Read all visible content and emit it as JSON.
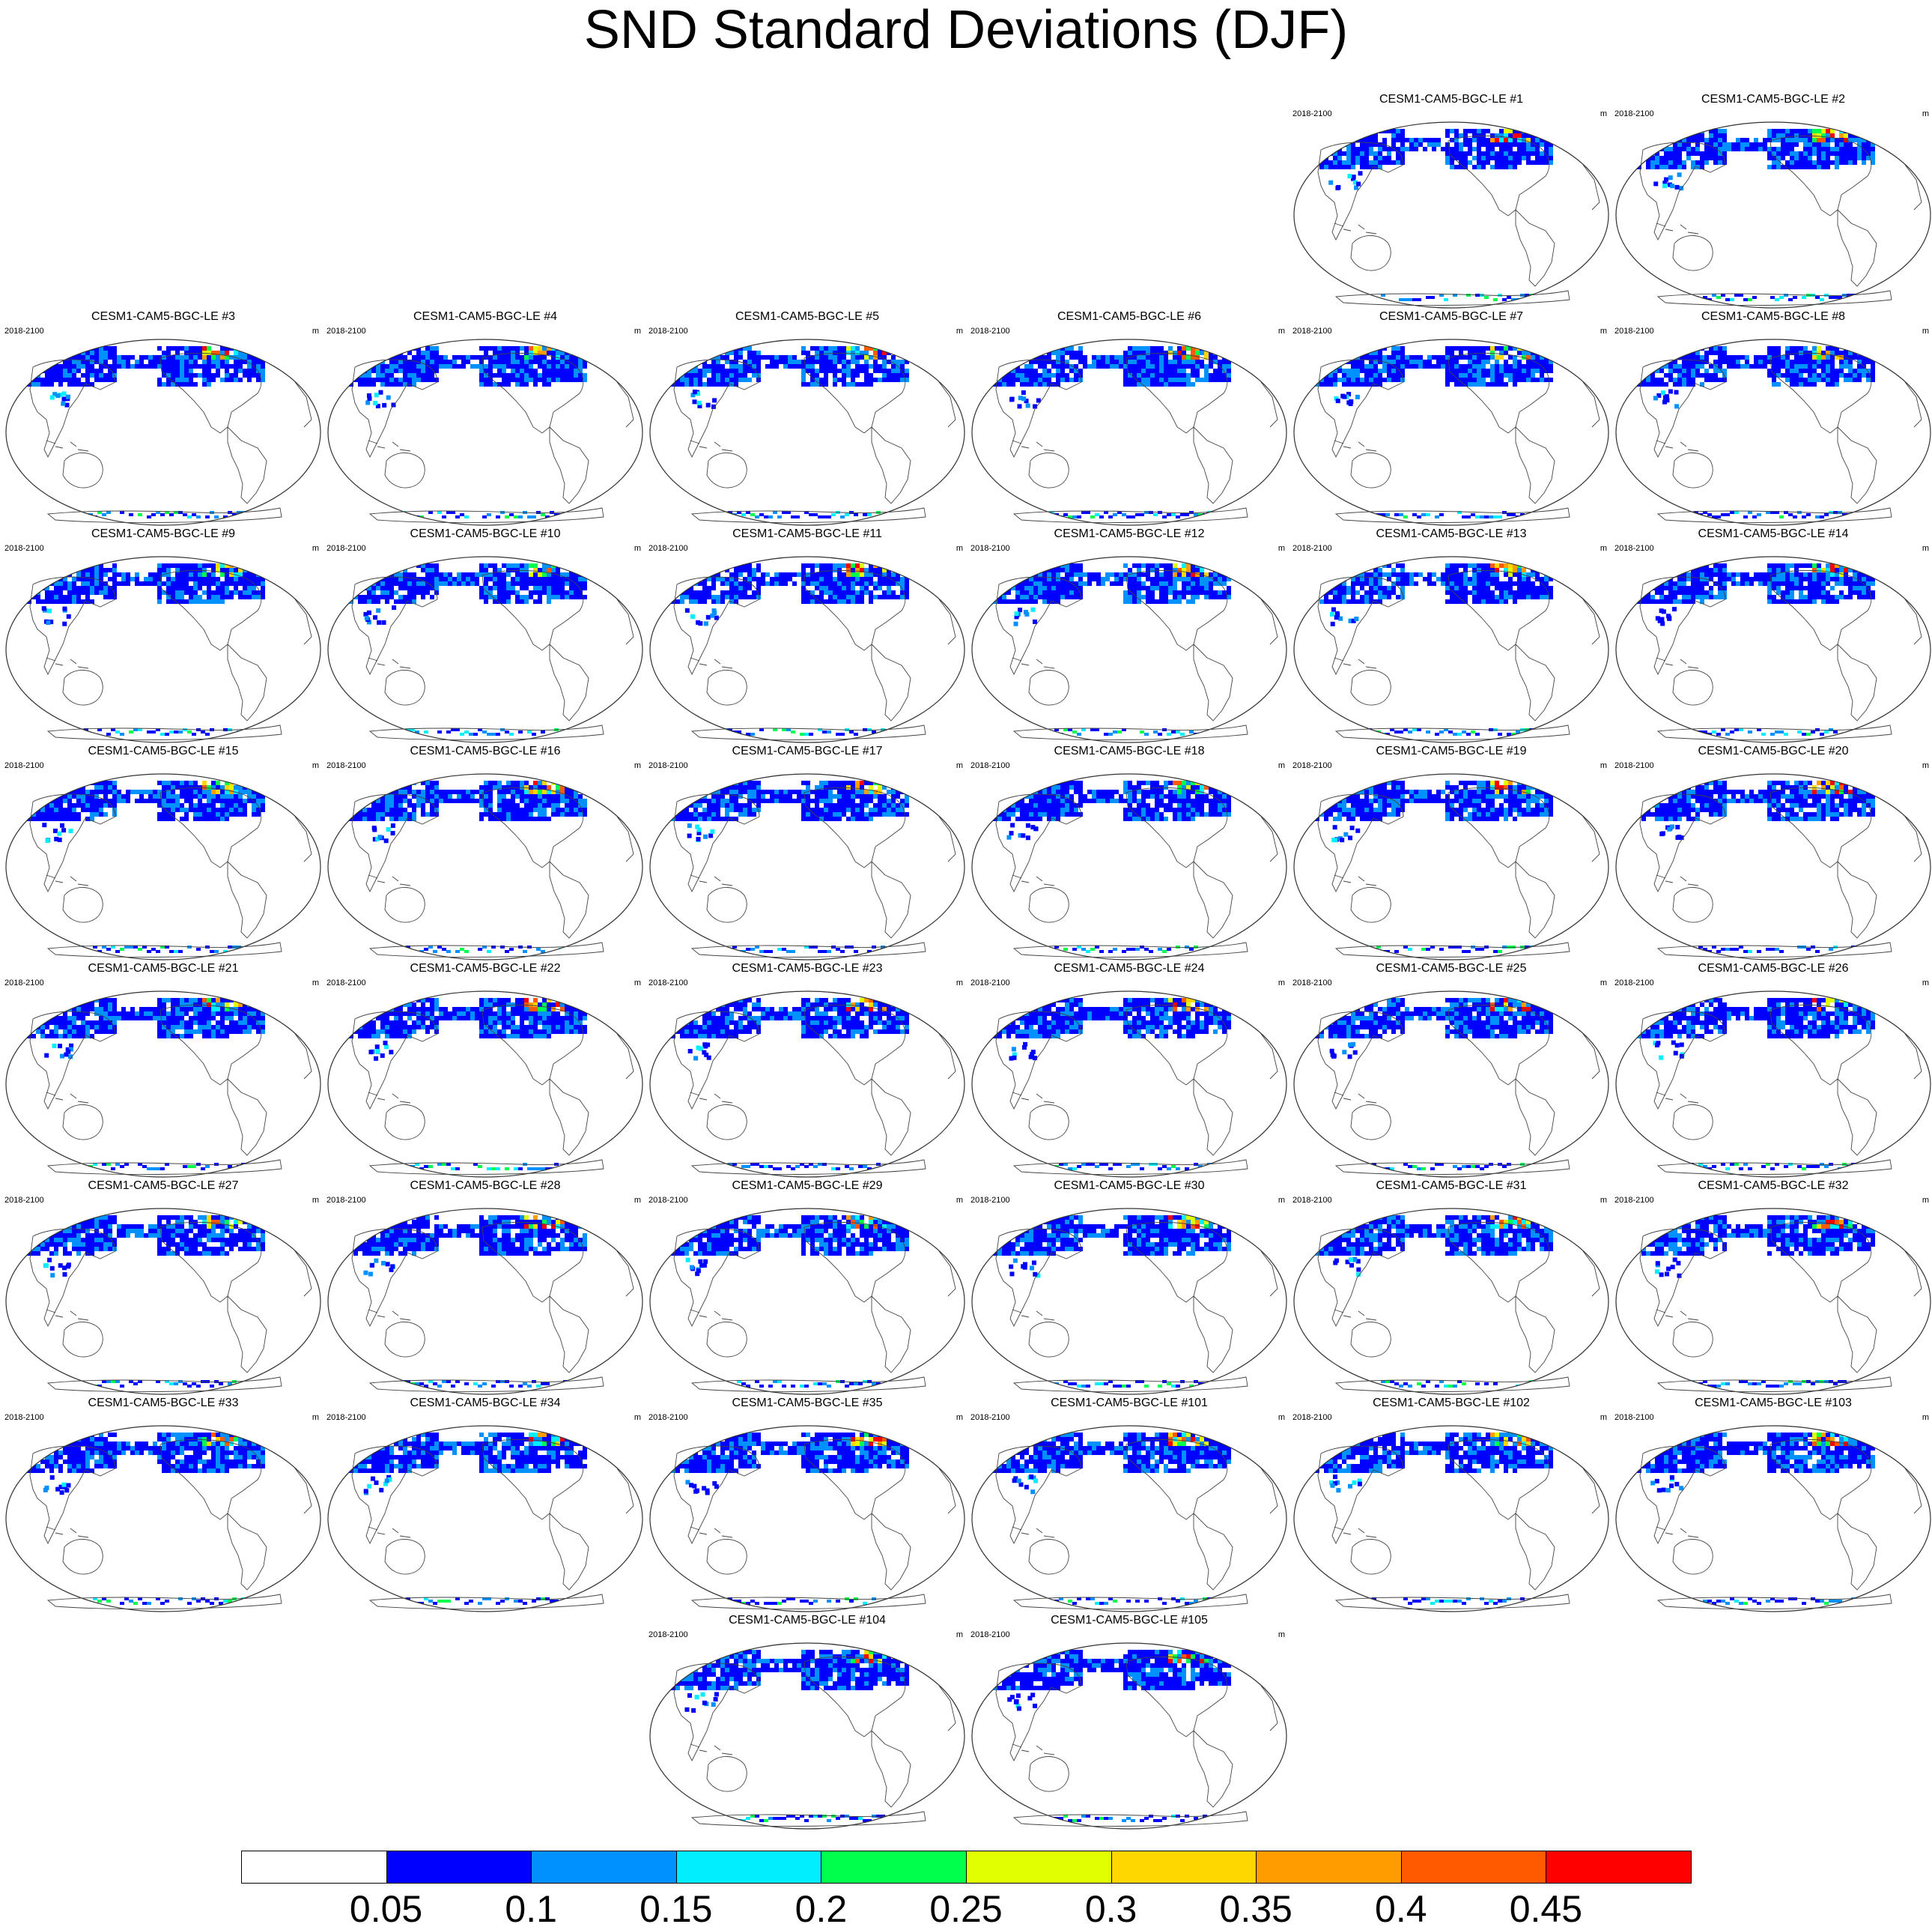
{
  "title": "SND Standard Deviations (DJF)",
  "panel_period": "2018-2100",
  "panel_units": "m",
  "panels": [
    {
      "label": "CESM1-CAM5-BGC-LE #1"
    },
    {
      "label": "CESM1-CAM5-BGC-LE #2"
    },
    {
      "label": "CESM1-CAM5-BGC-LE #3"
    },
    {
      "label": "CESM1-CAM5-BGC-LE #4"
    },
    {
      "label": "CESM1-CAM5-BGC-LE #5"
    },
    {
      "label": "CESM1-CAM5-BGC-LE #6"
    },
    {
      "label": "CESM1-CAM5-BGC-LE #7"
    },
    {
      "label": "CESM1-CAM5-BGC-LE #8"
    },
    {
      "label": "CESM1-CAM5-BGC-LE #9"
    },
    {
      "label": "CESM1-CAM5-BGC-LE #10"
    },
    {
      "label": "CESM1-CAM5-BGC-LE #11"
    },
    {
      "label": "CESM1-CAM5-BGC-LE #12"
    },
    {
      "label": "CESM1-CAM5-BGC-LE #13"
    },
    {
      "label": "CESM1-CAM5-BGC-LE #14"
    },
    {
      "label": "CESM1-CAM5-BGC-LE #15"
    },
    {
      "label": "CESM1-CAM5-BGC-LE #16"
    },
    {
      "label": "CESM1-CAM5-BGC-LE #17"
    },
    {
      "label": "CESM1-CAM5-BGC-LE #18"
    },
    {
      "label": "CESM1-CAM5-BGC-LE #19"
    },
    {
      "label": "CESM1-CAM5-BGC-LE #20"
    },
    {
      "label": "CESM1-CAM5-BGC-LE #21"
    },
    {
      "label": "CESM1-CAM5-BGC-LE #22"
    },
    {
      "label": "CESM1-CAM5-BGC-LE #23"
    },
    {
      "label": "CESM1-CAM5-BGC-LE #24"
    },
    {
      "label": "CESM1-CAM5-BGC-LE #25"
    },
    {
      "label": "CESM1-CAM5-BGC-LE #26"
    },
    {
      "label": "CESM1-CAM5-BGC-LE #27"
    },
    {
      "label": "CESM1-CAM5-BGC-LE #28"
    },
    {
      "label": "CESM1-CAM5-BGC-LE #29"
    },
    {
      "label": "CESM1-CAM5-BGC-LE #30"
    },
    {
      "label": "CESM1-CAM5-BGC-LE #31"
    },
    {
      "label": "CESM1-CAM5-BGC-LE #32"
    },
    {
      "label": "CESM1-CAM5-BGC-LE #33"
    },
    {
      "label": "CESM1-CAM5-BGC-LE #34"
    },
    {
      "label": "CESM1-CAM5-BGC-LE #35"
    },
    {
      "label": "CESM1-CAM5-BGC-LE #101"
    },
    {
      "label": "CESM1-CAM5-BGC-LE #102"
    },
    {
      "label": "CESM1-CAM5-BGC-LE #103"
    },
    {
      "label": "CESM1-CAM5-BGC-LE #104"
    },
    {
      "label": "CESM1-CAM5-BGC-LE #105"
    }
  ],
  "colorbar": {
    "labels": [
      "0.05",
      "0.1",
      "0.15",
      "0.2",
      "0.25",
      "0.3",
      "0.35",
      "0.4",
      "0.45"
    ],
    "colors": [
      "#ffffff",
      "#0000ff",
      "#0091ff",
      "#00eeff",
      "#00ff4c",
      "#e1ff00",
      "#ffd700",
      "#ff9d00",
      "#ff5a00",
      "#ff0000"
    ]
  },
  "snow_colors": [
    "#0000ff",
    "#0000ff",
    "#0000ff",
    "#0000ff",
    "#0000ff",
    "#0091ff",
    "#0091ff",
    "#00eeff",
    "#00ff4c",
    "#e1ff00",
    "#ffd700",
    "#ff9d00",
    "#ff5a00",
    "#ff0000"
  ]
}
